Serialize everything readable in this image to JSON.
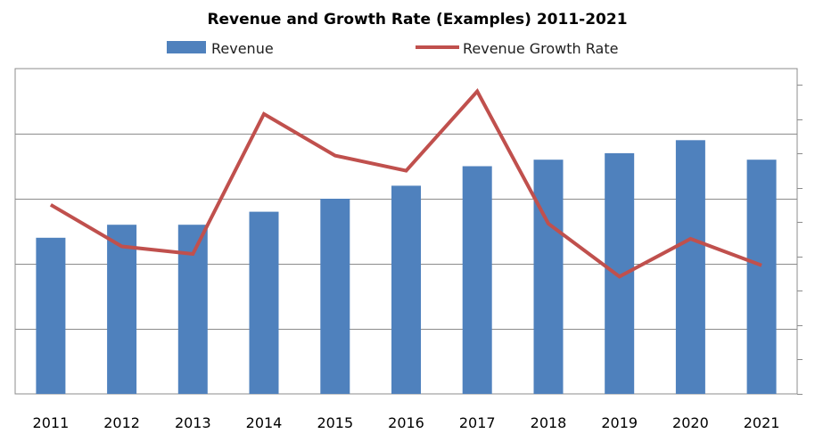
{
  "chart_data": {
    "type": "bar",
    "title": "Revenue and Growth Rate (Examples) 2011-2021",
    "categories": [
      "2011",
      "2012",
      "2013",
      "2014",
      "2015",
      "2016",
      "2017",
      "2018",
      "2019",
      "2020",
      "2021"
    ],
    "series": [
      {
        "name": "Revenue",
        "type": "bar",
        "axis": "left",
        "color": "#4f81bd",
        "values": [
          2.4,
          2.6,
          2.6,
          2.8,
          3.0,
          3.2,
          3.5,
          3.6,
          3.7,
          3.9,
          3.6
        ]
      },
      {
        "name": "Revenue Growth Rate",
        "type": "line",
        "axis": "right",
        "color": "#c0504d",
        "values": [
          5.0,
          3.9,
          3.7,
          7.4,
          6.3,
          5.9,
          8.0,
          4.5,
          3.1,
          4.1,
          3.4
        ]
      }
    ],
    "ylim_left": [
      0,
      5
    ],
    "ylim_right": [
      0,
      8.6
    ],
    "grid": true,
    "legend": "top",
    "xlabel": "",
    "ylabel": "",
    "y_tick_labels": "none"
  }
}
